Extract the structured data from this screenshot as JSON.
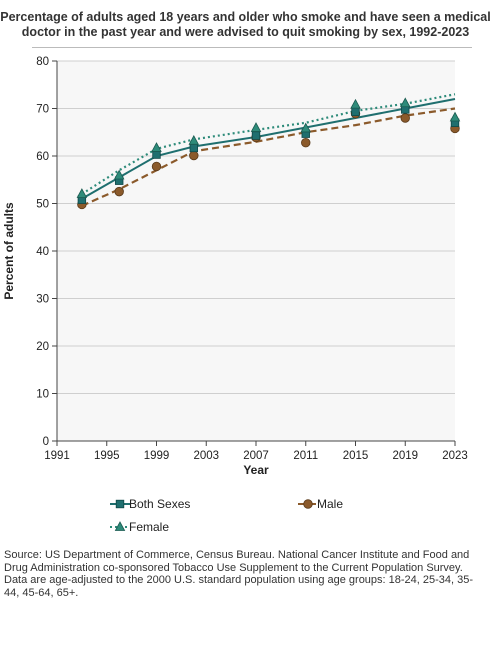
{
  "chart_data": {
    "type": "line",
    "title": "Percentage of adults aged 18 years and older who smoke and have seen a medical doctor in the past year and were advised to quit smoking by sex, 1992-2023",
    "xlabel": "Year",
    "ylabel": "Percent of adults",
    "xlim": [
      1991,
      2023
    ],
    "ylim": [
      0,
      80
    ],
    "xticks": [
      1991,
      1995,
      1999,
      2003,
      2007,
      2011,
      2015,
      2019,
      2023
    ],
    "yticks": [
      0,
      10,
      20,
      30,
      40,
      50,
      60,
      70,
      80
    ],
    "x": [
      1993,
      1996,
      1999,
      2002,
      2007,
      2011,
      2015,
      2019,
      2023
    ],
    "grid": "horizontal",
    "legend_position": "bottom",
    "series": [
      {
        "name": "Both Sexes",
        "marker": "square",
        "color": "#1f6f6f",
        "line_style": "solid",
        "values": [
          50.8,
          54.8,
          60.3,
          61.7,
          64.3,
          64.7,
          69.3,
          69.8,
          67.0
        ],
        "trend": [
          51.0,
          55.5,
          60.0,
          62.0,
          64.0,
          66.0,
          68.0,
          70.0,
          72.0
        ]
      },
      {
        "name": "Male",
        "marker": "circle",
        "color": "#8b5a2b",
        "line_style": "dashed",
        "values": [
          49.8,
          52.5,
          57.8,
          60.1,
          63.9,
          62.8,
          68.9,
          68.0,
          65.8
        ],
        "trend": [
          49.5,
          53.0,
          57.0,
          61.0,
          63.0,
          65.0,
          66.5,
          68.5,
          70.0
        ]
      },
      {
        "name": "Female",
        "marker": "triangle",
        "color": "#2e8b7a",
        "line_style": "dotted",
        "values": [
          52.0,
          55.9,
          61.7,
          63.2,
          65.9,
          65.8,
          70.8,
          71.1,
          68.1
        ],
        "trend": [
          52.0,
          57.0,
          61.5,
          63.5,
          65.5,
          67.0,
          69.5,
          71.0,
          73.0
        ]
      }
    ]
  },
  "footer": {
    "source": "Source: US Department of Commerce, Census Bureau. National Cancer Institute and Food and Drug Administration co-sponsored Tobacco Use Supplement to the Current Population Survey.",
    "note": "Data are age-adjusted to the 2000 U.S. standard population using age groups: 18-24, 25-34, 35-44, 45-64, 65+."
  }
}
